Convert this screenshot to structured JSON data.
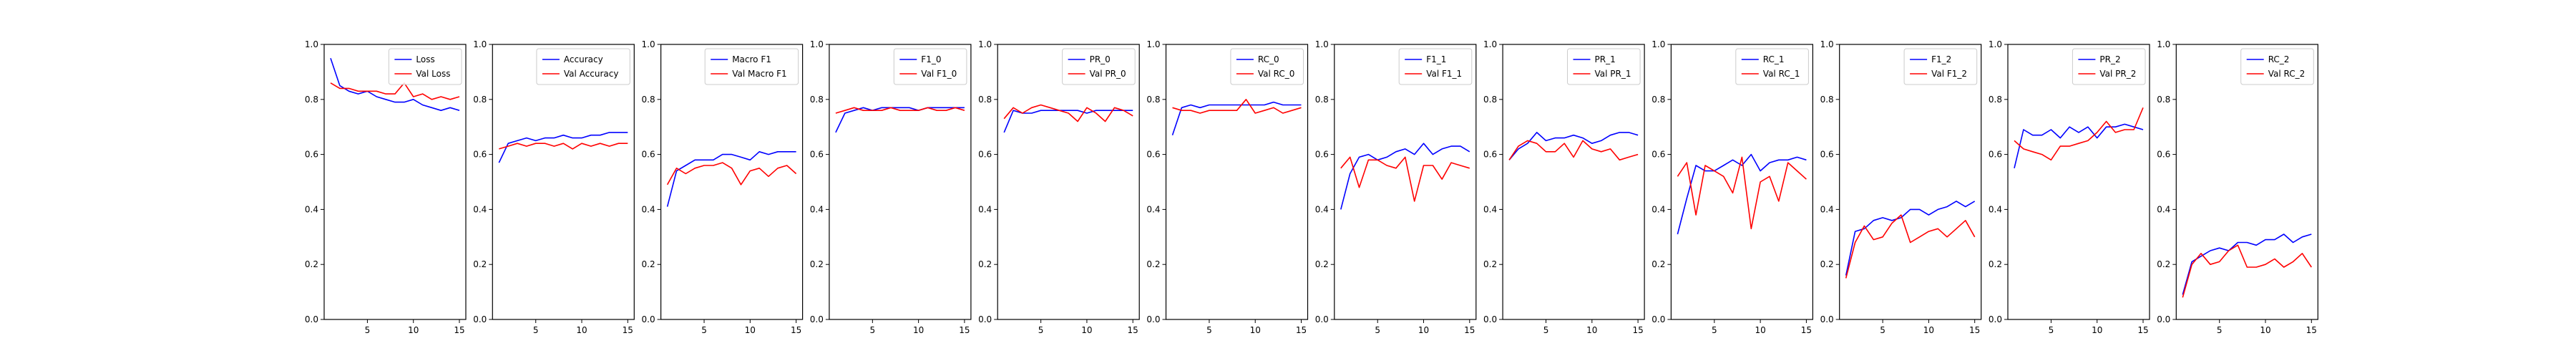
{
  "chart_data": [
    {
      "type": "line",
      "x": [
        1,
        2,
        3,
        4,
        5,
        6,
        7,
        8,
        9,
        10,
        11,
        12,
        13,
        14,
        15
      ],
      "ylim": [
        0,
        1
      ],
      "xticks": [
        5,
        10,
        15
      ],
      "yticks": [
        "0.0",
        "0.2",
        "0.4",
        "0.6",
        "0.8",
        "1.0"
      ],
      "legend_placement": "upper-right",
      "series": [
        {
          "name": "Loss",
          "color": "#0000ff",
          "values": [
            0.95,
            0.85,
            0.83,
            0.82,
            0.83,
            0.81,
            0.8,
            0.79,
            0.79,
            0.8,
            0.78,
            0.77,
            0.76,
            0.77,
            0.76
          ]
        },
        {
          "name": "Val Loss",
          "color": "#ff0000",
          "values": [
            0.86,
            0.84,
            0.84,
            0.83,
            0.83,
            0.83,
            0.82,
            0.82,
            0.86,
            0.81,
            0.82,
            0.8,
            0.81,
            0.8,
            0.81
          ]
        }
      ]
    },
    {
      "type": "line",
      "x": [
        1,
        2,
        3,
        4,
        5,
        6,
        7,
        8,
        9,
        10,
        11,
        12,
        13,
        14,
        15
      ],
      "ylim": [
        0,
        1
      ],
      "xticks": [
        5,
        10,
        15
      ],
      "yticks": [
        "0.0",
        "0.2",
        "0.4",
        "0.6",
        "0.8",
        "1.0"
      ],
      "legend_placement": "upper-right",
      "series": [
        {
          "name": "Accuracy",
          "color": "#0000ff",
          "values": [
            0.57,
            0.64,
            0.65,
            0.66,
            0.65,
            0.66,
            0.66,
            0.67,
            0.66,
            0.66,
            0.67,
            0.67,
            0.68,
            0.68,
            0.68
          ]
        },
        {
          "name": "Val Accuracy",
          "color": "#ff0000",
          "values": [
            0.62,
            0.63,
            0.64,
            0.63,
            0.64,
            0.64,
            0.63,
            0.64,
            0.62,
            0.64,
            0.63,
            0.64,
            0.63,
            0.64,
            0.64
          ]
        }
      ]
    },
    {
      "type": "line",
      "x": [
        1,
        2,
        3,
        4,
        5,
        6,
        7,
        8,
        9,
        10,
        11,
        12,
        13,
        14,
        15
      ],
      "ylim": [
        0,
        1
      ],
      "xticks": [
        5,
        10,
        15
      ],
      "yticks": [
        "0.0",
        "0.2",
        "0.4",
        "0.6",
        "0.8",
        "1.0"
      ],
      "legend_placement": "upper-right",
      "series": [
        {
          "name": "Macro F1",
          "color": "#0000ff",
          "values": [
            0.41,
            0.54,
            0.56,
            0.58,
            0.58,
            0.58,
            0.6,
            0.6,
            0.59,
            0.58,
            0.61,
            0.6,
            0.61,
            0.61,
            0.61
          ]
        },
        {
          "name": "Val Macro F1",
          "color": "#ff0000",
          "values": [
            0.49,
            0.55,
            0.53,
            0.55,
            0.56,
            0.56,
            0.57,
            0.55,
            0.49,
            0.54,
            0.55,
            0.52,
            0.55,
            0.56,
            0.53
          ]
        }
      ]
    },
    {
      "type": "line",
      "x": [
        1,
        2,
        3,
        4,
        5,
        6,
        7,
        8,
        9,
        10,
        11,
        12,
        13,
        14,
        15
      ],
      "ylim": [
        0,
        1
      ],
      "xticks": [
        5,
        10,
        15
      ],
      "yticks": [
        "0.0",
        "0.2",
        "0.4",
        "0.6",
        "0.8",
        "1.0"
      ],
      "legend_placement": "upper-right",
      "series": [
        {
          "name": "F1_0",
          "color": "#0000ff",
          "values": [
            0.68,
            0.75,
            0.76,
            0.77,
            0.76,
            0.77,
            0.77,
            0.77,
            0.77,
            0.76,
            0.77,
            0.77,
            0.77,
            0.77,
            0.77
          ]
        },
        {
          "name": "Val F1_0",
          "color": "#ff0000",
          "values": [
            0.75,
            0.76,
            0.77,
            0.76,
            0.76,
            0.76,
            0.77,
            0.76,
            0.76,
            0.76,
            0.77,
            0.76,
            0.76,
            0.77,
            0.76
          ]
        }
      ]
    },
    {
      "type": "line",
      "x": [
        1,
        2,
        3,
        4,
        5,
        6,
        7,
        8,
        9,
        10,
        11,
        12,
        13,
        14,
        15
      ],
      "ylim": [
        0,
        1
      ],
      "xticks": [
        5,
        10,
        15
      ],
      "yticks": [
        "0.0",
        "0.2",
        "0.4",
        "0.6",
        "0.8",
        "1.0"
      ],
      "legend_placement": "upper-right",
      "series": [
        {
          "name": "PR_0",
          "color": "#0000ff",
          "values": [
            0.68,
            0.76,
            0.75,
            0.75,
            0.76,
            0.76,
            0.76,
            0.76,
            0.76,
            0.75,
            0.76,
            0.76,
            0.76,
            0.76,
            0.76
          ]
        },
        {
          "name": "Val PR_0",
          "color": "#ff0000",
          "values": [
            0.73,
            0.77,
            0.75,
            0.77,
            0.78,
            0.77,
            0.76,
            0.75,
            0.72,
            0.77,
            0.75,
            0.72,
            0.77,
            0.76,
            0.74
          ]
        }
      ]
    },
    {
      "type": "line",
      "x": [
        1,
        2,
        3,
        4,
        5,
        6,
        7,
        8,
        9,
        10,
        11,
        12,
        13,
        14,
        15
      ],
      "ylim": [
        0,
        1
      ],
      "xticks": [
        5,
        10,
        15
      ],
      "yticks": [
        "0.0",
        "0.2",
        "0.4",
        "0.6",
        "0.8",
        "1.0"
      ],
      "legend_placement": "upper-right",
      "series": [
        {
          "name": "RC_0",
          "color": "#0000ff",
          "values": [
            0.67,
            0.77,
            0.78,
            0.77,
            0.78,
            0.78,
            0.78,
            0.78,
            0.78,
            0.78,
            0.78,
            0.79,
            0.78,
            0.78,
            0.78
          ]
        },
        {
          "name": "Val RC_0",
          "color": "#ff0000",
          "values": [
            0.77,
            0.76,
            0.76,
            0.75,
            0.76,
            0.76,
            0.76,
            0.76,
            0.8,
            0.75,
            0.76,
            0.77,
            0.75,
            0.76,
            0.77
          ]
        }
      ]
    },
    {
      "type": "line",
      "x": [
        1,
        2,
        3,
        4,
        5,
        6,
        7,
        8,
        9,
        10,
        11,
        12,
        13,
        14,
        15
      ],
      "ylim": [
        0,
        1
      ],
      "xticks": [
        5,
        10,
        15
      ],
      "yticks": [
        "0.0",
        "0.2",
        "0.4",
        "0.6",
        "0.8",
        "1.0"
      ],
      "legend_placement": "upper-right",
      "series": [
        {
          "name": "F1_1",
          "color": "#0000ff",
          "values": [
            0.4,
            0.53,
            0.59,
            0.6,
            0.58,
            0.59,
            0.61,
            0.62,
            0.6,
            0.64,
            0.6,
            0.62,
            0.63,
            0.63,
            0.61
          ]
        },
        {
          "name": "Val F1_1",
          "color": "#ff0000",
          "values": [
            0.55,
            0.59,
            0.48,
            0.58,
            0.58,
            0.56,
            0.55,
            0.59,
            0.43,
            0.56,
            0.56,
            0.51,
            0.57,
            0.56,
            0.55
          ]
        }
      ]
    },
    {
      "type": "line",
      "x": [
        1,
        2,
        3,
        4,
        5,
        6,
        7,
        8,
        9,
        10,
        11,
        12,
        13,
        14,
        15
      ],
      "ylim": [
        0,
        1
      ],
      "xticks": [
        5,
        10,
        15
      ],
      "yticks": [
        "0.0",
        "0.2",
        "0.4",
        "0.6",
        "0.8",
        "1.0"
      ],
      "legend_placement": "upper-right",
      "series": [
        {
          "name": "PR_1",
          "color": "#0000ff",
          "values": [
            0.58,
            0.62,
            0.64,
            0.68,
            0.65,
            0.66,
            0.66,
            0.67,
            0.66,
            0.64,
            0.65,
            0.67,
            0.68,
            0.68,
            0.67
          ]
        },
        {
          "name": "Val PR_1",
          "color": "#ff0000",
          "values": [
            0.58,
            0.63,
            0.65,
            0.64,
            0.61,
            0.61,
            0.64,
            0.59,
            0.65,
            0.62,
            0.61,
            0.62,
            0.58,
            0.59,
            0.6
          ]
        }
      ]
    },
    {
      "type": "line",
      "x": [
        1,
        2,
        3,
        4,
        5,
        6,
        7,
        8,
        9,
        10,
        11,
        12,
        13,
        14,
        15
      ],
      "ylim": [
        0,
        1
      ],
      "xticks": [
        5,
        10,
        15
      ],
      "yticks": [
        "0.0",
        "0.2",
        "0.4",
        "0.6",
        "0.8",
        "1.0"
      ],
      "legend_placement": "upper-right",
      "series": [
        {
          "name": "RC_1",
          "color": "#0000ff",
          "values": [
            0.31,
            0.44,
            0.56,
            0.54,
            0.54,
            0.56,
            0.58,
            0.56,
            0.6,
            0.54,
            0.57,
            0.58,
            0.58,
            0.59,
            0.58
          ]
        },
        {
          "name": "Val RC_1",
          "color": "#ff0000",
          "values": [
            0.52,
            0.57,
            0.38,
            0.56,
            0.54,
            0.52,
            0.46,
            0.59,
            0.33,
            0.5,
            0.52,
            0.43,
            0.57,
            0.54,
            0.51
          ]
        }
      ]
    },
    {
      "type": "line",
      "x": [
        1,
        2,
        3,
        4,
        5,
        6,
        7,
        8,
        9,
        10,
        11,
        12,
        13,
        14,
        15
      ],
      "ylim": [
        0,
        1
      ],
      "xticks": [
        5,
        10,
        15
      ],
      "yticks": [
        "0.0",
        "0.2",
        "0.4",
        "0.6",
        "0.8",
        "1.0"
      ],
      "legend_placement": "upper-right",
      "series": [
        {
          "name": "F1_2",
          "color": "#0000ff",
          "values": [
            0.16,
            0.32,
            0.33,
            0.36,
            0.37,
            0.36,
            0.37,
            0.4,
            0.4,
            0.38,
            0.4,
            0.41,
            0.43,
            0.41,
            0.43
          ]
        },
        {
          "name": "Val F1_2",
          "color": "#ff0000",
          "values": [
            0.15,
            0.28,
            0.34,
            0.29,
            0.3,
            0.35,
            0.38,
            0.28,
            0.3,
            0.32,
            0.33,
            0.3,
            0.33,
            0.36,
            0.3
          ]
        }
      ]
    },
    {
      "type": "line",
      "x": [
        1,
        2,
        3,
        4,
        5,
        6,
        7,
        8,
        9,
        10,
        11,
        12,
        13,
        14,
        15
      ],
      "ylim": [
        0,
        1
      ],
      "xticks": [
        5,
        10,
        15
      ],
      "yticks": [
        "0.0",
        "0.2",
        "0.4",
        "0.6",
        "0.8",
        "1.0"
      ],
      "legend_placement": "upper-right",
      "series": [
        {
          "name": "PR_2",
          "color": "#0000ff",
          "values": [
            0.55,
            0.69,
            0.67,
            0.67,
            0.69,
            0.66,
            0.7,
            0.68,
            0.7,
            0.66,
            0.7,
            0.7,
            0.71,
            0.7,
            0.69
          ]
        },
        {
          "name": "Val PR_2",
          "color": "#ff0000",
          "values": [
            0.65,
            0.62,
            0.61,
            0.6,
            0.58,
            0.63,
            0.63,
            0.64,
            0.65,
            0.68,
            0.72,
            0.68,
            0.69,
            0.69,
            0.77
          ]
        }
      ]
    },
    {
      "type": "line",
      "x": [
        1,
        2,
        3,
        4,
        5,
        6,
        7,
        8,
        9,
        10,
        11,
        12,
        13,
        14,
        15
      ],
      "ylim": [
        0,
        1
      ],
      "xticks": [
        5,
        10,
        15
      ],
      "yticks": [
        "0.0",
        "0.2",
        "0.4",
        "0.6",
        "0.8",
        "1.0"
      ],
      "legend_placement": "upper-right",
      "series": [
        {
          "name": "RC_2",
          "color": "#0000ff",
          "values": [
            0.09,
            0.21,
            0.23,
            0.25,
            0.26,
            0.25,
            0.28,
            0.28,
            0.27,
            0.29,
            0.29,
            0.31,
            0.28,
            0.3,
            0.31
          ]
        },
        {
          "name": "Val RC_2",
          "color": "#ff0000",
          "values": [
            0.08,
            0.2,
            0.24,
            0.2,
            0.21,
            0.25,
            0.27,
            0.19,
            0.19,
            0.2,
            0.22,
            0.19,
            0.21,
            0.24,
            0.19
          ]
        }
      ]
    }
  ]
}
